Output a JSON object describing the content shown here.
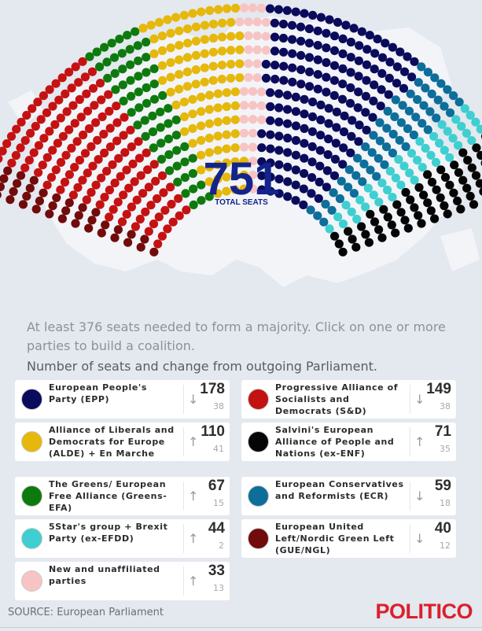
{
  "total": {
    "value": "751",
    "label": "TOTAL SEATS"
  },
  "intro_text": "At least 376 seats needed to form a majority. Click on one or more parties to build a coalition.",
  "subtitle": "Number of seats and change from outgoing Parliament.",
  "source": "SOURCE: European Parliament",
  "logo": "POLITICO",
  "parties": [
    {
      "key": "epp",
      "name": "European People's Party (EPP)",
      "seats": "178",
      "direction": "down",
      "change": "38",
      "color": "#0b0b5c"
    },
    {
      "key": "sd",
      "name": "Progressive Alliance of Socialists and Democrats (S&D)",
      "seats": "149",
      "direction": "down",
      "change": "38",
      "color": "#c41212"
    },
    {
      "key": "alde",
      "name": "Alliance of Liberals and Democrats for Europe (ALDE) + En Marche",
      "seats": "110",
      "direction": "up",
      "change": "41",
      "color": "#e5b80b"
    },
    {
      "key": "enf",
      "name": "Salvini's European Alliance of People and Nations (ex-ENF)",
      "seats": "71",
      "direction": "up",
      "change": "35",
      "color": "#050505"
    },
    {
      "key": "greens",
      "name": "The Greens/ European Free Alliance (Greens-EFA)",
      "seats": "67",
      "direction": "up",
      "change": "15",
      "color": "#0e7a0e"
    },
    {
      "key": "ecr",
      "name": "European Conservatives and Reformists (ECR)",
      "seats": "59",
      "direction": "down",
      "change": "18",
      "color": "#0d6e9a"
    },
    {
      "key": "efdd",
      "name": "5Star's group + Brexit Party (ex-EFDD)",
      "seats": "44",
      "direction": "up",
      "change": "2",
      "color": "#3fcfd0"
    },
    {
      "key": "gue",
      "name": "European United Left/Nordic Green Left (GUE/NGL)",
      "seats": "40",
      "direction": "down",
      "change": "12",
      "color": "#720b0b"
    },
    {
      "key": "ni",
      "name": "New and unaffiliated parties",
      "seats": "33",
      "direction": "up",
      "change": "13",
      "color": "#f7c4c4"
    }
  ],
  "chart_data": {
    "type": "parliament-hemicycle",
    "total_seats": 751,
    "series": [
      {
        "name": "European United Left/Nordic Green Left (GUE/NGL)",
        "value": 40,
        "color": "#720b0b"
      },
      {
        "name": "Progressive Alliance of Socialists and Democrats (S&D)",
        "value": 149,
        "color": "#c41212"
      },
      {
        "name": "The Greens/ European Free Alliance (Greens-EFA)",
        "value": 67,
        "color": "#0e7a0e"
      },
      {
        "name": "Alliance of Liberals and Democrats for Europe (ALDE) + En Marche",
        "value": 110,
        "color": "#e5b80b"
      },
      {
        "name": "New and unaffiliated parties",
        "value": 33,
        "color": "#f7c4c4"
      },
      {
        "name": "European People's Party (EPP)",
        "value": 178,
        "color": "#0b0b5c"
      },
      {
        "name": "European Conservatives and Reformists (ECR)",
        "value": 59,
        "color": "#0d6e9a"
      },
      {
        "name": "5Star's group + Brexit Party (ex-EFDD)",
        "value": 44,
        "color": "#3fcfd0"
      },
      {
        "name": "Salvini's European Alliance of People and Nations (ex-ENF)",
        "value": 71,
        "color": "#050505"
      }
    ]
  }
}
